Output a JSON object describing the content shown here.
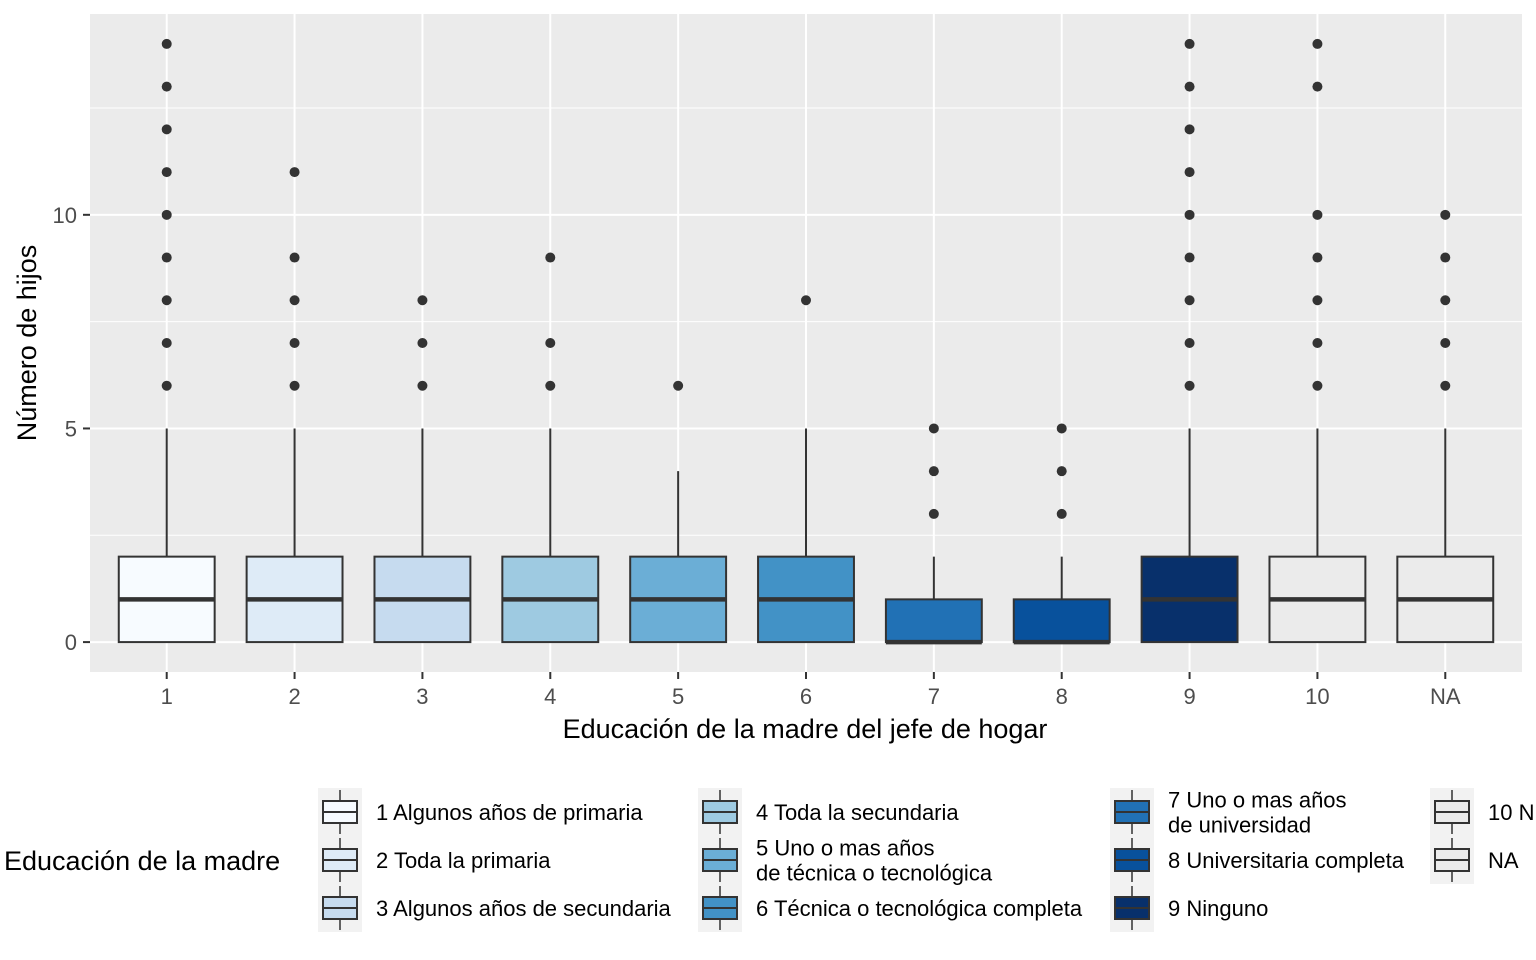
{
  "chart_data": {
    "type": "boxplot",
    "xlabel": "Educación de la madre del jefe de hogar",
    "ylabel": "Número de hijos",
    "ylim": [
      -0.7,
      14.7
    ],
    "yticks": [
      0,
      5,
      10
    ],
    "grid": true,
    "legend_placement": "bottom",
    "legend_title": "Educación de la madre",
    "categories": [
      "1",
      "2",
      "3",
      "4",
      "5",
      "6",
      "7",
      "8",
      "9",
      "10",
      "NA"
    ],
    "boxes": [
      {
        "category": "1",
        "min": 0,
        "q1": 0,
        "median": 1,
        "q3": 2,
        "max": 5,
        "outliers": [
          6,
          7,
          8,
          9,
          10,
          11,
          12,
          13,
          14
        ],
        "fill": "#f7fbff"
      },
      {
        "category": "2",
        "min": 0,
        "q1": 0,
        "median": 1,
        "q3": 2,
        "max": 5,
        "outliers": [
          6,
          7,
          8,
          9,
          11
        ],
        "fill": "#deebf7"
      },
      {
        "category": "3",
        "min": 0,
        "q1": 0,
        "median": 1,
        "q3": 2,
        "max": 5,
        "outliers": [
          6,
          7,
          8
        ],
        "fill": "#c6dbef"
      },
      {
        "category": "4",
        "min": 0,
        "q1": 0,
        "median": 1,
        "q3": 2,
        "max": 5,
        "outliers": [
          6,
          7,
          9
        ],
        "fill": "#9ecae1"
      },
      {
        "category": "5",
        "min": 0,
        "q1": 0,
        "median": 1,
        "q3": 2,
        "max": 4,
        "outliers": [
          6
        ],
        "fill": "#6baed6"
      },
      {
        "category": "6",
        "min": 0,
        "q1": 0,
        "median": 1,
        "q3": 2,
        "max": 5,
        "outliers": [
          8
        ],
        "fill": "#4292c6"
      },
      {
        "category": "7",
        "min": 0,
        "q1": 0,
        "median": 0,
        "q3": 1,
        "max": 2,
        "outliers": [
          3,
          4,
          5
        ],
        "fill": "#2171b5"
      },
      {
        "category": "8",
        "min": 0,
        "q1": 0,
        "median": 0,
        "q3": 1,
        "max": 2,
        "outliers": [
          3,
          4,
          5
        ],
        "fill": "#08519c"
      },
      {
        "category": "9",
        "min": 0,
        "q1": 0,
        "median": 1,
        "q3": 2,
        "max": 5,
        "outliers": [
          6,
          7,
          8,
          9,
          10,
          11,
          12,
          13,
          14
        ],
        "fill": "#08306b"
      },
      {
        "category": "10",
        "min": 0,
        "q1": 0,
        "median": 1,
        "q3": 2,
        "max": 5,
        "outliers": [
          6,
          7,
          8,
          9,
          10,
          13,
          14
        ],
        "fill": "#ebebeb"
      },
      {
        "category": "NA",
        "min": 0,
        "q1": 0,
        "median": 1,
        "q3": 2,
        "max": 5,
        "outliers": [
          6,
          7,
          8,
          9,
          10
        ],
        "fill": "#ebebeb"
      }
    ],
    "legend": [
      {
        "lines": [
          "1 Algunos años de primaria"
        ],
        "fill": "#f7fbff"
      },
      {
        "lines": [
          "2 Toda la primaria"
        ],
        "fill": "#deebf7"
      },
      {
        "lines": [
          "3 Algunos años de secundaria"
        ],
        "fill": "#c6dbef"
      },
      {
        "lines": [
          "4 Toda la secundaria"
        ],
        "fill": "#9ecae1"
      },
      {
        "lines": [
          "5 Uno o mas años",
          "de técnica o tecnológica"
        ],
        "fill": "#6baed6"
      },
      {
        "lines": [
          "6 Técnica o tecnológica completa"
        ],
        "fill": "#4292c6"
      },
      {
        "lines": [
          "7 Uno o mas años",
          "de universidad"
        ],
        "fill": "#2171b5"
      },
      {
        "lines": [
          "8 Universitaria completa"
        ],
        "fill": "#08519c"
      },
      {
        "lines": [
          "9 Ninguno"
        ],
        "fill": "#08306b"
      },
      {
        "lines": [
          "10 N"
        ],
        "fill": "#ebebeb"
      },
      {
        "lines": [
          "NA"
        ],
        "fill": "#ebebeb"
      }
    ]
  },
  "colors": {
    "panel_background": "#ebebeb",
    "gridline": "#ffffff",
    "box_outline": "#333333",
    "median_line": "#333333",
    "outlier": "#333333",
    "tick_label": "#4d4d4d"
  }
}
